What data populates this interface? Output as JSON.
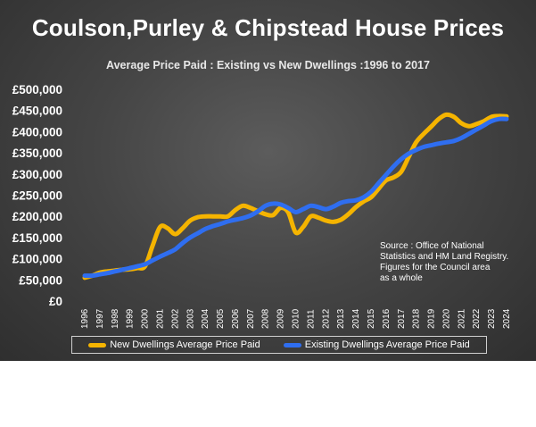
{
  "chart_data": {
    "type": "line",
    "title": "Coulson,Purley & Chipstead House Prices",
    "subtitle": "Average Price Paid : Existing vs New Dwellings :1996 to 2017",
    "xlabel": "",
    "ylabel": "",
    "ylim": [
      0,
      500000
    ],
    "y_ticks": [
      0,
      50000,
      100000,
      150000,
      200000,
      250000,
      300000,
      350000,
      400000,
      450000,
      500000
    ],
    "y_tick_labels": [
      "£0",
      "£50,000",
      "£100,000",
      "£150,000",
      "£200,000",
      "£250,000",
      "£300,000",
      "£350,000",
      "£400,000",
      "£450,000",
      "£500,000"
    ],
    "categories": [
      "1996",
      "1997",
      "1998",
      "1999",
      "2000",
      "2001",
      "2002",
      "2003",
      "2004",
      "2005",
      "2006",
      "2007",
      "2008",
      "2009",
      "2010",
      "2011",
      "2012",
      "2013",
      "2014",
      "2015",
      "2016",
      "2017",
      "2018",
      "2019",
      "2020",
      "2021",
      "2022",
      "2023",
      "2024"
    ],
    "x_tick_step": 1,
    "series": [
      {
        "name": "New Dwellings Average Price Paid",
        "color": "#f5b400",
        "points": [
          [
            1996,
            55000
          ],
          [
            1996.5,
            60000
          ],
          [
            1997,
            67000
          ],
          [
            1997.5,
            70000
          ],
          [
            1998,
            72000
          ],
          [
            1998.5,
            74000
          ],
          [
            1999,
            75000
          ],
          [
            1999.5,
            78000
          ],
          [
            2000,
            82000
          ],
          [
            2000.5,
            130000
          ],
          [
            2001,
            175000
          ],
          [
            2001.5,
            172000
          ],
          [
            2002,
            158000
          ],
          [
            2002.5,
            172000
          ],
          [
            2003,
            190000
          ],
          [
            2003.5,
            198000
          ],
          [
            2004,
            200000
          ],
          [
            2004.5,
            200000
          ],
          [
            2005,
            200000
          ],
          [
            2005.5,
            200000
          ],
          [
            2006,
            215000
          ],
          [
            2006.5,
            225000
          ],
          [
            2007,
            220000
          ],
          [
            2007.5,
            212000
          ],
          [
            2008,
            205000
          ],
          [
            2008.5,
            203000
          ],
          [
            2009,
            220000
          ],
          [
            2009.5,
            210000
          ],
          [
            2010,
            162000
          ],
          [
            2010.5,
            175000
          ],
          [
            2011,
            200000
          ],
          [
            2011.5,
            197000
          ],
          [
            2012,
            190000
          ],
          [
            2012.5,
            187000
          ],
          [
            2013,
            192000
          ],
          [
            2013.5,
            205000
          ],
          [
            2014,
            222000
          ],
          [
            2014.5,
            235000
          ],
          [
            2015,
            245000
          ],
          [
            2015.5,
            265000
          ],
          [
            2016,
            285000
          ],
          [
            2016.5,
            292000
          ],
          [
            2017,
            305000
          ],
          [
            2017.5,
            340000
          ],
          [
            2018,
            375000
          ],
          [
            2018.5,
            395000
          ],
          [
            2019,
            412000
          ],
          [
            2019.5,
            430000
          ],
          [
            2020,
            440000
          ],
          [
            2020.5,
            435000
          ],
          [
            2021,
            420000
          ],
          [
            2021.5,
            413000
          ],
          [
            2022,
            418000
          ],
          [
            2022.5,
            425000
          ],
          [
            2023,
            435000
          ],
          [
            2023.5,
            437000
          ],
          [
            2024,
            436000
          ]
        ]
      },
      {
        "name": "Existing Dwellings Average Price Paid",
        "color": "#2f6ef0",
        "points": [
          [
            1996,
            60000
          ],
          [
            1996.5,
            60000
          ],
          [
            1997,
            63000
          ],
          [
            1997.5,
            66000
          ],
          [
            1998,
            70000
          ],
          [
            1998.5,
            74000
          ],
          [
            1999,
            78000
          ],
          [
            1999.5,
            82000
          ],
          [
            2000,
            87000
          ],
          [
            2000.5,
            96000
          ],
          [
            2001,
            105000
          ],
          [
            2001.5,
            113000
          ],
          [
            2002,
            122000
          ],
          [
            2002.5,
            137000
          ],
          [
            2003,
            150000
          ],
          [
            2003.5,
            160000
          ],
          [
            2004,
            170000
          ],
          [
            2004.5,
            177000
          ],
          [
            2005,
            182000
          ],
          [
            2005.5,
            188000
          ],
          [
            2006,
            192000
          ],
          [
            2006.5,
            196000
          ],
          [
            2007,
            202000
          ],
          [
            2007.5,
            212000
          ],
          [
            2008,
            225000
          ],
          [
            2008.5,
            230000
          ],
          [
            2009,
            228000
          ],
          [
            2009.5,
            220000
          ],
          [
            2010,
            210000
          ],
          [
            2010.5,
            217000
          ],
          [
            2011,
            225000
          ],
          [
            2011.5,
            222000
          ],
          [
            2012,
            217000
          ],
          [
            2012.5,
            223000
          ],
          [
            2013,
            232000
          ],
          [
            2013.5,
            236000
          ],
          [
            2014,
            238000
          ],
          [
            2014.5,
            245000
          ],
          [
            2015,
            258000
          ],
          [
            2015.5,
            278000
          ],
          [
            2016,
            298000
          ],
          [
            2016.5,
            318000
          ],
          [
            2017,
            335000
          ],
          [
            2017.5,
            348000
          ],
          [
            2018,
            357000
          ],
          [
            2018.5,
            364000
          ],
          [
            2019,
            368000
          ],
          [
            2019.5,
            372000
          ],
          [
            2020,
            375000
          ],
          [
            2020.5,
            378000
          ],
          [
            2021,
            385000
          ],
          [
            2021.5,
            395000
          ],
          [
            2022,
            405000
          ],
          [
            2022.5,
            415000
          ],
          [
            2023,
            425000
          ],
          [
            2023.5,
            430000
          ],
          [
            2024,
            430000
          ]
        ]
      }
    ],
    "annotation": [
      "Source : Office of National",
      "Statistics and HM Land Registry.",
      "Figures for the Council area",
      "as a whole"
    ],
    "legend": {
      "placement": "bottom",
      "labels": [
        "New Dwellings Average Price Paid",
        "Existing Dwellings Average Price Paid"
      ]
    },
    "grid": false,
    "background": "#454545"
  }
}
